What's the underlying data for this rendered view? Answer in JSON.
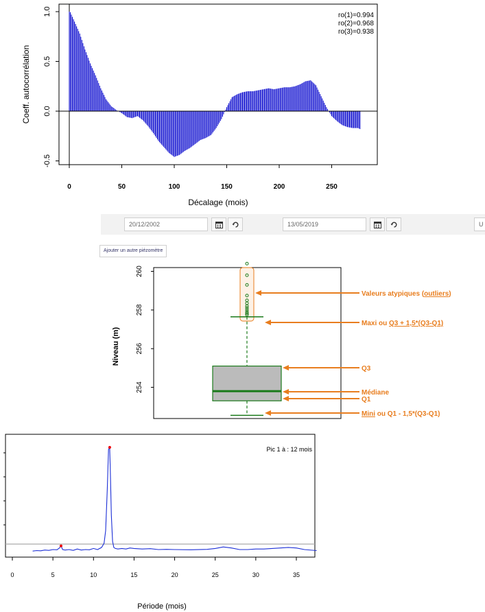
{
  "toolbar": {
    "date_start": "20/12/2002",
    "date_end": "13/05/2019",
    "cut_text": "U",
    "add_button": "Ajouter un autre piézomètre"
  },
  "chart_data": [
    {
      "type": "bar",
      "title": "",
      "xlabel": "Décalage (mois)",
      "ylabel": "Coeff. autocorrélation",
      "xlim": [
        0,
        280
      ],
      "ylim": [
        -0.5,
        1.0
      ],
      "xticks": [
        "0",
        "50",
        "100",
        "150",
        "200",
        "250"
      ],
      "yticks": [
        "-0.5",
        "0.0",
        "0.5",
        "1.0"
      ],
      "annotations": [
        "ro(1)=0.994",
        "ro(2)=0.968",
        "ro(3)=0.938"
      ],
      "series_color": "#0000cc",
      "profile": {
        "x": [
          0,
          1,
          5,
          10,
          15,
          20,
          25,
          30,
          35,
          40,
          45,
          50,
          55,
          60,
          65,
          70,
          75,
          80,
          85,
          90,
          95,
          100,
          105,
          110,
          115,
          120,
          125,
          130,
          135,
          140,
          145,
          150,
          155,
          160,
          165,
          170,
          175,
          180,
          185,
          190,
          195,
          200,
          205,
          210,
          215,
          220,
          225,
          230,
          235,
          240,
          245,
          250,
          255,
          260,
          265,
          270,
          275,
          277
        ],
        "y": [
          1.0,
          0.994,
          0.9,
          0.78,
          0.62,
          0.48,
          0.36,
          0.23,
          0.12,
          0.05,
          0.01,
          -0.02,
          -0.06,
          -0.07,
          -0.05,
          -0.09,
          -0.15,
          -0.22,
          -0.3,
          -0.36,
          -0.42,
          -0.46,
          -0.44,
          -0.4,
          -0.37,
          -0.33,
          -0.29,
          -0.27,
          -0.24,
          -0.17,
          -0.08,
          0.04,
          0.14,
          0.17,
          0.19,
          0.2,
          0.2,
          0.21,
          0.22,
          0.23,
          0.22,
          0.23,
          0.24,
          0.24,
          0.25,
          0.27,
          0.3,
          0.31,
          0.26,
          0.15,
          0.04,
          -0.05,
          -0.1,
          -0.14,
          -0.16,
          -0.17,
          -0.17,
          -0.18
        ]
      }
    },
    {
      "type": "box",
      "ylabel": "Niveau (m)",
      "ylim": [
        252.3,
        261.0
      ],
      "yticks": [
        "254",
        "256",
        "258",
        "260"
      ],
      "stats": {
        "min": 252.55,
        "q1": 253.3,
        "median": 253.8,
        "q3": 255.1,
        "max": 257.65
      },
      "outliers": [
        260.4,
        259.8,
        259.3,
        258.75,
        258.5,
        258.35,
        258.2,
        258.1,
        258.0,
        257.9,
        257.82,
        257.75
      ],
      "box_color": "#bbbbbb",
      "line_color": "#1a7a1a",
      "annotation_color": "#e87d1e",
      "annotations": {
        "outliers": [
          "Valeurs atypiques (",
          "outliers",
          ")"
        ],
        "max": [
          "Maxi ou ",
          "Q3 + 1,5*(Q3-Q1)"
        ],
        "q3": "Q3",
        "median": "Médiane",
        "q1": "Q1",
        "min": [
          "Mini",
          " ou Q1 - 1,5*(Q3-Q1)"
        ]
      }
    },
    {
      "type": "line",
      "xlabel": "Période (mois)",
      "xlim": [
        0,
        37.5
      ],
      "xticks": [
        "0",
        "5",
        "10",
        "15",
        "20",
        "25",
        "30",
        "35"
      ],
      "legend": "Pic 1 à : 12  mois",
      "series_color": "#1b2ed6",
      "threshold_color": "#aaaaaa",
      "peaks": [
        {
          "x": 6.0,
          "y": 0.055
        },
        {
          "x": 12.0,
          "y": 1.0
        }
      ],
      "series": {
        "x": [
          2.5,
          3,
          3.5,
          4,
          4.5,
          5,
          5.5,
          5.8,
          6,
          6.2,
          6.5,
          7,
          7.5,
          8,
          8.5,
          9,
          9.5,
          10,
          10.5,
          11,
          11.3,
          11.5,
          11.7,
          11.85,
          12,
          12.1,
          12.2,
          12.35,
          12.5,
          12.7,
          13,
          13.5,
          14,
          14.5,
          15,
          16,
          17,
          18,
          19,
          20,
          22,
          24,
          25,
          26,
          27,
          28,
          29,
          30,
          31,
          32,
          33,
          34,
          35,
          36,
          37.5
        ],
        "y": [
          0.005,
          0.01,
          0.008,
          0.015,
          0.012,
          0.02,
          0.018,
          0.035,
          0.055,
          0.02,
          0.015,
          0.02,
          0.012,
          0.025,
          0.015,
          0.02,
          0.018,
          0.03,
          0.02,
          0.04,
          0.08,
          0.2,
          0.6,
          0.98,
          1.0,
          0.7,
          0.35,
          0.1,
          0.04,
          0.03,
          0.025,
          0.03,
          0.025,
          0.035,
          0.03,
          0.025,
          0.028,
          0.02,
          0.022,
          0.02,
          0.018,
          0.022,
          0.03,
          0.045,
          0.035,
          0.02,
          0.02,
          0.025,
          0.025,
          0.03,
          0.035,
          0.04,
          0.035,
          0.02,
          0.01
        ]
      }
    }
  ]
}
